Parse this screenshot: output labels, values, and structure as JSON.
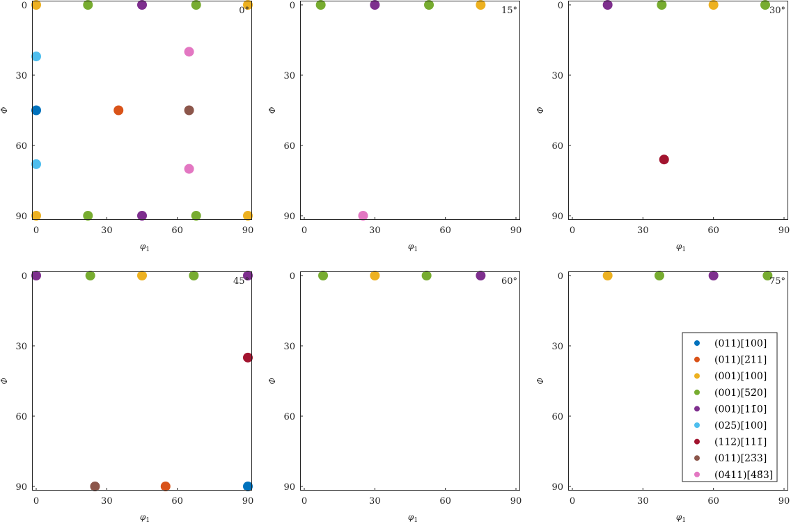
{
  "chart_data": {
    "type": "scatter",
    "layout": "2x3 small multiples",
    "xlabel": "φ1",
    "ylabel": "Φ",
    "xlim": [
      0,
      90
    ],
    "ylim": [
      0,
      90
    ],
    "y_reversed": true,
    "xticks": [
      0,
      30,
      60,
      90
    ],
    "yticks": [
      0,
      30,
      60,
      90
    ],
    "grid": false,
    "legend": {
      "placement": "bottom-right of last panel",
      "entries": [
        {
          "key": "s1",
          "label": "(011)[100]",
          "color": "#0072BD"
        },
        {
          "key": "s2",
          "label": "(011)[2̄11]",
          "color": "#D95319"
        },
        {
          "key": "s3",
          "label": "(001)[100]",
          "color": "#EDB120"
        },
        {
          "key": "s4",
          "label": "(001)[52̄0]",
          "color": "#77AC30"
        },
        {
          "key": "s5",
          "label": "(001)[11̄0]",
          "color": "#7E2F8E"
        },
        {
          "key": "s6",
          "label": "(025)[100]",
          "color": "#4DBEEE"
        },
        {
          "key": "s7",
          "label": "(112)[111̄]",
          "color": "#A2142F"
        },
        {
          "key": "s8",
          "label": "(011)[23̄3]",
          "color": "#8C564B"
        },
        {
          "key": "s9",
          "label": "(0411)[48̄3]",
          "color": "#E377C2"
        }
      ]
    },
    "panels": [
      {
        "annotation": "0°",
        "points": [
          {
            "s": "s3",
            "x": 0,
            "y": 0
          },
          {
            "s": "s4",
            "x": 22,
            "y": 0
          },
          {
            "s": "s5",
            "x": 45,
            "y": 0
          },
          {
            "s": "s4",
            "x": 68,
            "y": 0
          },
          {
            "s": "s3",
            "x": 90,
            "y": 0
          },
          {
            "s": "s6",
            "x": 0,
            "y": 22
          },
          {
            "s": "s9",
            "x": 65,
            "y": 20
          },
          {
            "s": "s1",
            "x": 0,
            "y": 45
          },
          {
            "s": "s2",
            "x": 35,
            "y": 45
          },
          {
            "s": "s8",
            "x": 65,
            "y": 45
          },
          {
            "s": "s6",
            "x": 0,
            "y": 68
          },
          {
            "s": "s9",
            "x": 65,
            "y": 70
          },
          {
            "s": "s3",
            "x": 0,
            "y": 90
          },
          {
            "s": "s4",
            "x": 22,
            "y": 90
          },
          {
            "s": "s5",
            "x": 45,
            "y": 90
          },
          {
            "s": "s4",
            "x": 68,
            "y": 90
          },
          {
            "s": "s3",
            "x": 90,
            "y": 90
          }
        ]
      },
      {
        "annotation": "15°",
        "points": [
          {
            "s": "s4",
            "x": 7,
            "y": 0
          },
          {
            "s": "s5",
            "x": 30,
            "y": 0
          },
          {
            "s": "s4",
            "x": 53,
            "y": 0
          },
          {
            "s": "s3",
            "x": 75,
            "y": 0
          },
          {
            "s": "s9",
            "x": 25,
            "y": 90
          }
        ]
      },
      {
        "annotation": "30°",
        "points": [
          {
            "s": "s5",
            "x": 15,
            "y": 0
          },
          {
            "s": "s4",
            "x": 38,
            "y": 0
          },
          {
            "s": "s3",
            "x": 60,
            "y": 0
          },
          {
            "s": "s4",
            "x": 82,
            "y": 0
          },
          {
            "s": "s7",
            "x": 39,
            "y": 66
          }
        ]
      },
      {
        "annotation": "45°",
        "points": [
          {
            "s": "s5",
            "x": 0,
            "y": 0
          },
          {
            "s": "s4",
            "x": 23,
            "y": 0
          },
          {
            "s": "s3",
            "x": 45,
            "y": 0
          },
          {
            "s": "s4",
            "x": 67,
            "y": 0
          },
          {
            "s": "s5",
            "x": 90,
            "y": 0
          },
          {
            "s": "s7",
            "x": 90,
            "y": 35
          },
          {
            "s": "s8",
            "x": 25,
            "y": 90
          },
          {
            "s": "s2",
            "x": 55,
            "y": 90
          },
          {
            "s": "s1",
            "x": 90,
            "y": 90
          }
        ]
      },
      {
        "annotation": "60°",
        "points": [
          {
            "s": "s4",
            "x": 8,
            "y": 0
          },
          {
            "s": "s3",
            "x": 30,
            "y": 0
          },
          {
            "s": "s4",
            "x": 52,
            "y": 0
          },
          {
            "s": "s5",
            "x": 75,
            "y": 0
          }
        ]
      },
      {
        "annotation": "75°",
        "points": [
          {
            "s": "s3",
            "x": 15,
            "y": 0
          },
          {
            "s": "s4",
            "x": 37,
            "y": 0
          },
          {
            "s": "s5",
            "x": 60,
            "y": 0
          },
          {
            "s": "s4",
            "x": 83,
            "y": 0
          }
        ]
      }
    ]
  }
}
